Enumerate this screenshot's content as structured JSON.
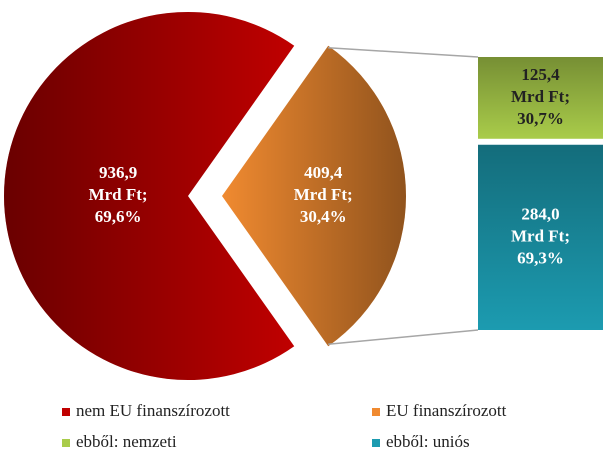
{
  "chart_data": {
    "type": "pie",
    "categories": [
      "nem EU finanszírozott",
      "EU finanszírozott"
    ],
    "values": [
      936.9,
      409.4
    ],
    "colors": [
      "#c00000",
      "#f08a30"
    ],
    "value_labels": [
      [
        "936,9",
        "Mrd Ft;",
        "69,6%"
      ],
      [
        "409,4",
        "Mrd Ft;",
        "30,4%"
      ]
    ],
    "breakdown": {
      "type": "bar",
      "categories": [
        "ebből: nemzeti",
        "ebből: uniós"
      ],
      "values": [
        125.4,
        284.0
      ],
      "colors": [
        "#a9cc4a",
        "#1c9bb0"
      ],
      "value_labels": [
        [
          "125,4",
          "Mrd Ft;",
          "30,7%"
        ],
        [
          "284,0",
          "Mrd Ft;",
          "69,3%"
        ]
      ]
    },
    "legend": "bottom"
  }
}
